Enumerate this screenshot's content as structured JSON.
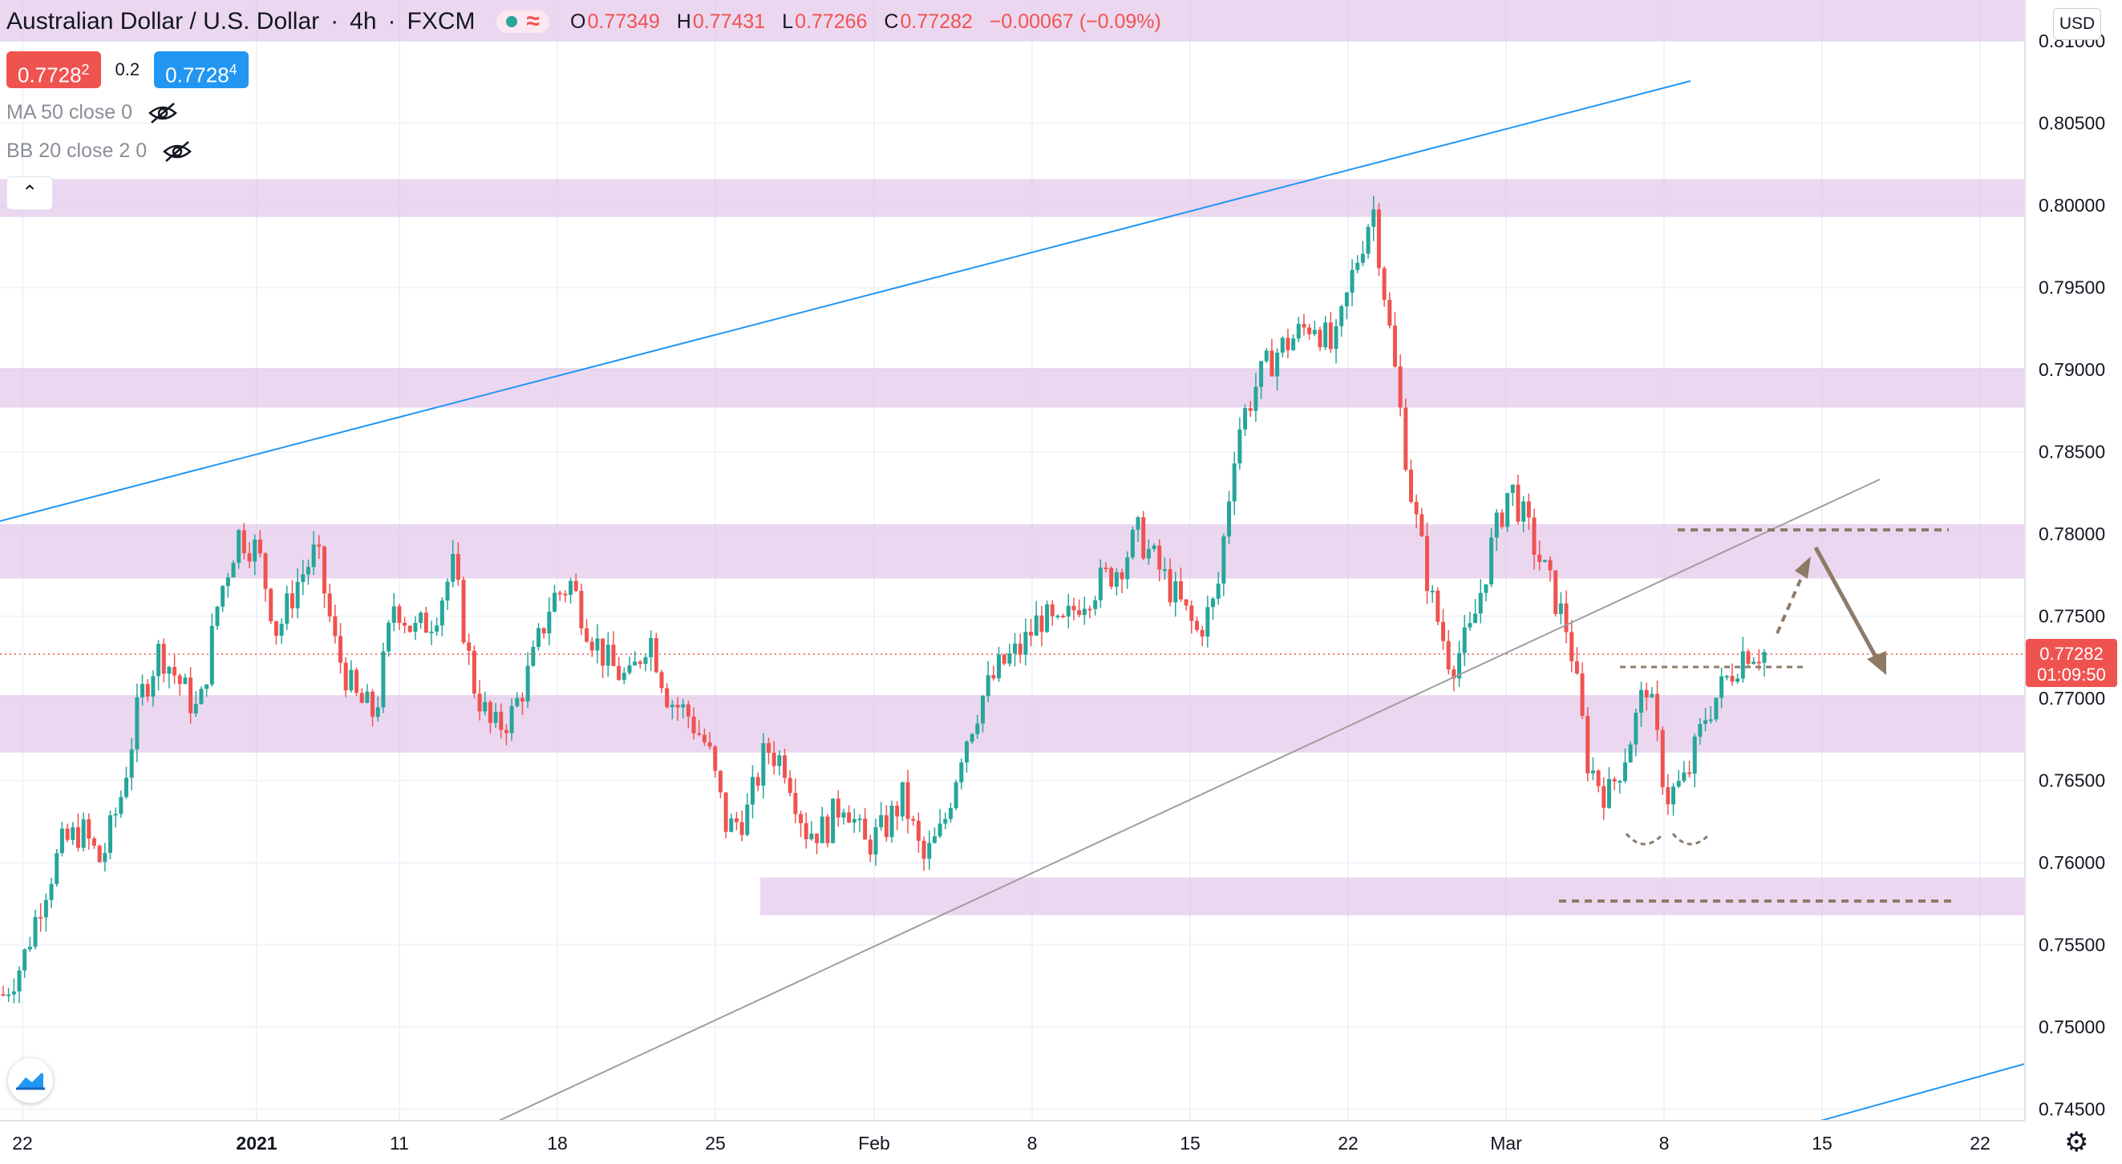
{
  "header": {
    "symbol_title": "Australian Dollar / U.S. Dollar",
    "interval": "4h",
    "exchange": "FXCM",
    "ohlc": [
      {
        "label": "O",
        "value": "0.77349"
      },
      {
        "label": "H",
        "value": "0.77431"
      },
      {
        "label": "L",
        "value": "0.77266"
      },
      {
        "label": "C",
        "value": "0.77282"
      }
    ],
    "change": "−0.00067 (−0.09%)"
  },
  "trade": {
    "sell_price": "0.7728",
    "sell_pip": "2",
    "spread": "0.2",
    "buy_price": "0.7728",
    "buy_pip": "4"
  },
  "indicators": [
    {
      "label": "MA 50 close 0",
      "icon": "eye-off-icon"
    },
    {
      "label": "BB 20 close 2 0",
      "icon": "eye-off-icon"
    }
  ],
  "price_scale": {
    "currency": "USD",
    "ticks": [
      "0.81000",
      "0.80500",
      "0.80000",
      "0.79500",
      "0.79000",
      "0.78500",
      "0.78000",
      "0.77500",
      "0.77000",
      "0.76500",
      "0.76000",
      "0.75500",
      "0.75000",
      "0.74500"
    ],
    "last_price": "0.77282",
    "countdown": "01:09:50"
  },
  "time_scale": {
    "labels": [
      "22",
      "2021",
      "11",
      "18",
      "25",
      "Feb",
      "8",
      "15",
      "22",
      "Mar",
      "8",
      "15",
      "22"
    ]
  },
  "colors": {
    "up": "#26a69a",
    "down": "#ef5350",
    "zone": "#e1bee7",
    "trendline_blue": "#2196f3",
    "trendline_gray": "#9e9e9e",
    "annotation_brown": "#8d7b68"
  },
  "chart_data": {
    "type": "candlestick",
    "title": "Australian Dollar / U.S. Dollar · 4h · FXCM",
    "xlabel": "",
    "ylabel": "",
    "ylim": [
      0.7443,
      0.8125
    ],
    "last_price": 0.77282,
    "x_labels": [
      "22",
      "2021",
      "11",
      "18",
      "25",
      "Feb",
      "8",
      "15",
      "22",
      "Mar",
      "8",
      "15",
      "22"
    ],
    "zones": [
      [
        0.81,
        0.8125
      ],
      [
        0.7993,
        0.8016
      ],
      [
        0.7877,
        0.7901
      ],
      [
        0.7773,
        0.7806
      ],
      [
        0.7667,
        0.7702
      ],
      [
        0.7568,
        0.7591
      ]
    ],
    "series": [
      {
        "name": "close_path",
        "values": [
          0.752,
          0.754,
          0.758,
          0.761,
          0.762,
          0.76,
          0.764,
          0.77,
          0.773,
          0.771,
          0.769,
          0.776,
          0.78,
          0.779,
          0.774,
          0.777,
          0.779,
          0.773,
          0.77,
          0.769,
          0.776,
          0.774,
          0.775,
          0.778,
          0.771,
          0.768,
          0.769,
          0.772,
          0.776,
          0.777,
          0.774,
          0.772,
          0.771,
          0.774,
          0.77,
          0.769,
          0.767,
          0.762,
          0.763,
          0.767,
          0.766,
          0.762,
          0.762,
          0.764,
          0.761,
          0.762,
          0.764,
          0.76,
          0.762,
          0.767,
          0.77,
          0.772,
          0.773,
          0.775,
          0.774,
          0.776,
          0.777,
          0.778,
          0.78,
          0.778,
          0.776,
          0.774,
          0.776,
          0.786,
          0.789,
          0.791,
          0.792,
          0.793,
          0.791,
          0.796,
          0.8,
          0.791,
          0.782,
          0.776,
          0.772,
          0.774,
          0.779,
          0.783,
          0.78,
          0.777,
          0.774,
          0.766,
          0.764,
          0.767,
          0.771,
          0.764,
          0.765,
          0.769,
          0.771,
          0.773,
          0.7728
        ]
      }
    ],
    "annotations": [
      {
        "type": "trendline",
        "name": "upper channel line",
        "from": [
          "22",
          0.7805
        ],
        "to": [
          "Mar",
          0.8075
        ]
      },
      {
        "type": "trendline",
        "name": "rising support line",
        "from": [
          "18",
          0.7445
        ],
        "to": [
          "Mar",
          0.7835
        ]
      },
      {
        "type": "horizontal-dashed",
        "value": 0.7803
      },
      {
        "type": "horizontal-dashed",
        "value": 0.7579
      },
      {
        "type": "horizontal-dashed",
        "value": 0.7721
      },
      {
        "type": "arrow-dashed-up"
      },
      {
        "type": "arrow-down"
      }
    ]
  }
}
